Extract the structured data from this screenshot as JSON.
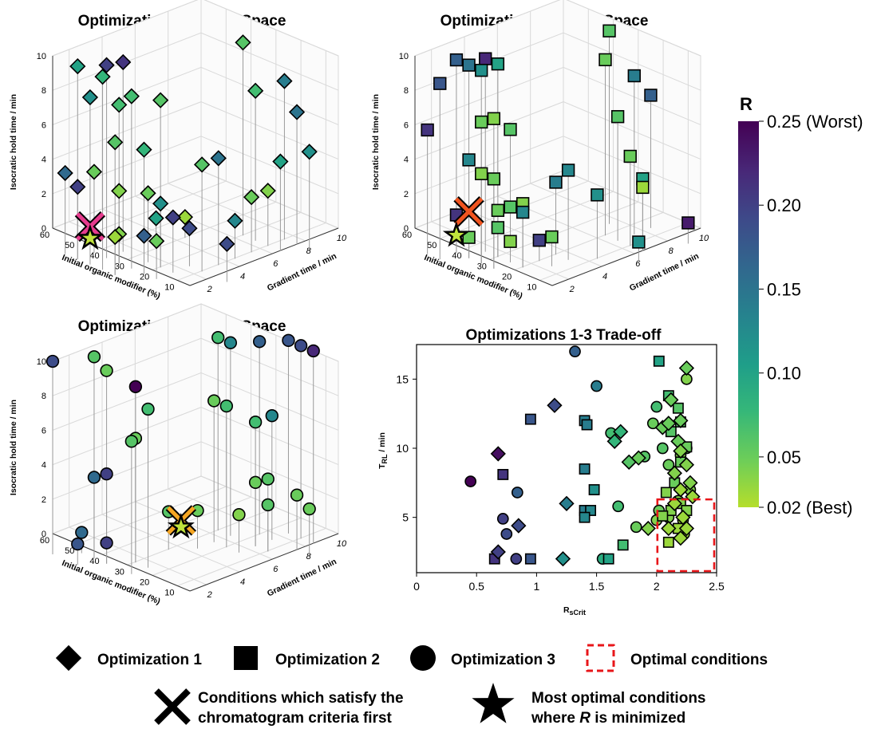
{
  "chart_data": [
    {
      "type": "scatter3d",
      "title": "Optimization 1 Design Space",
      "xlabel": "Gradient time / min",
      "ylabel": "Initial organic modifier (%)",
      "zlabel": "Isocratic hold time / min",
      "xticks": [
        "2",
        "4",
        "6",
        "8",
        "10"
      ],
      "yticks": [
        "10",
        "20",
        "30",
        "40",
        "50",
        "60"
      ],
      "zticks": [
        "0",
        "2",
        "4",
        "6",
        "8",
        "10"
      ],
      "xlim": [
        1,
        10
      ],
      "ylim": [
        5,
        60
      ],
      "zlim": [
        0,
        10
      ],
      "marker": "diamond",
      "points": [
        [
          1,
          50,
          10,
          0.1
        ],
        [
          1,
          45,
          8.5,
          0.12
        ],
        [
          1,
          40,
          10,
          0.08
        ],
        [
          2,
          40,
          8,
          0.07
        ],
        [
          1,
          35,
          6.5,
          0.06
        ],
        [
          2,
          35,
          8.8,
          0.07
        ],
        [
          2,
          30,
          6,
          0.08
        ],
        [
          3,
          30,
          8.5,
          0.06
        ],
        [
          2,
          45,
          10,
          0.2
        ],
        [
          3,
          45,
          9.8,
          0.21
        ],
        [
          1,
          55,
          3.5,
          0.16
        ],
        [
          1,
          50,
          3,
          0.2
        ],
        [
          2,
          50,
          3.5,
          0.05
        ],
        [
          2,
          40,
          3,
          0.04
        ],
        [
          3,
          35,
          2.8,
          0.05
        ],
        [
          3,
          30,
          2.5,
          0.12
        ],
        [
          2,
          30,
          1,
          0.17
        ],
        [
          2,
          25,
          1,
          0.05
        ],
        [
          3,
          25,
          2,
          0.2
        ],
        [
          4,
          25,
          1,
          0.19
        ],
        [
          4,
          20,
          5,
          0.06
        ],
        [
          5,
          20,
          5,
          0.15
        ],
        [
          1,
          35,
          1,
          0.03
        ],
        [
          2,
          40,
          0.5,
          0.04
        ],
        [
          6,
          20,
          1,
          0.13
        ],
        [
          4,
          10,
          1,
          0.19
        ],
        [
          8,
          30,
          10,
          0.06
        ],
        [
          8,
          25,
          7.5,
          0.07
        ],
        [
          9,
          20,
          8,
          0.14
        ],
        [
          9,
          15,
          6.5,
          0.15
        ],
        [
          8,
          15,
          4,
          0.1
        ],
        [
          9,
          10,
          4.5,
          0.12
        ],
        [
          7,
          20,
          2,
          0.05
        ],
        [
          8,
          20,
          2,
          0.04
        ],
        [
          6,
          40,
          0,
          0.03
        ],
        [
          5,
          45,
          0,
          0.1
        ]
      ],
      "highlight_x": [
        1,
        45,
        1
      ],
      "highlight_star": [
        1,
        45,
        0.5
      ]
    },
    {
      "type": "scatter3d",
      "title": "Optimization 2 Design Space",
      "xlabel": "Gradient time / min",
      "ylabel": "Initial organic modifier (%)",
      "zlabel": "Isocratic hold time / min",
      "xticks": [
        "2",
        "4",
        "6",
        "8",
        "10"
      ],
      "yticks": [
        "10",
        "20",
        "30",
        "40",
        "50",
        "60"
      ],
      "zticks": [
        "0",
        "2",
        "4",
        "6",
        "8",
        "10"
      ],
      "xlim": [
        1,
        10
      ],
      "ylim": [
        5,
        60
      ],
      "zlim": [
        0,
        10
      ],
      "marker": "square",
      "points": [
        [
          1,
          55,
          6,
          0.21
        ],
        [
          1,
          50,
          9,
          0.18
        ],
        [
          2,
          50,
          10,
          0.17
        ],
        [
          2,
          45,
          10,
          0.15
        ],
        [
          2,
          40,
          10,
          0.12
        ],
        [
          3,
          40,
          10,
          0.1
        ],
        [
          2,
          40,
          7,
          0.05
        ],
        [
          2,
          35,
          7.5,
          0.04
        ],
        [
          3,
          35,
          6.5,
          0.06
        ],
        [
          2,
          45,
          4.5,
          0.13
        ],
        [
          2,
          40,
          4,
          0.04
        ],
        [
          2,
          35,
          4,
          0.05
        ],
        [
          3,
          30,
          2.5,
          0.04
        ],
        [
          3,
          30,
          2,
          0.13
        ],
        [
          3,
          35,
          2,
          0.06
        ],
        [
          3,
          40,
          1.5,
          0.05
        ],
        [
          5,
          30,
          3,
          0.14
        ],
        [
          5,
          25,
          4,
          0.13
        ],
        [
          2,
          50,
          1,
          0.21
        ],
        [
          2,
          45,
          0,
          0.05
        ],
        [
          3,
          40,
          0.5,
          0.06
        ],
        [
          3,
          35,
          0,
          0.04
        ],
        [
          4,
          30,
          0,
          0.2
        ],
        [
          4,
          25,
          0.5,
          0.05
        ],
        [
          9,
          35,
          10,
          0.06
        ],
        [
          8,
          30,
          9,
          0.05
        ],
        [
          9,
          25,
          8,
          0.14
        ],
        [
          10,
          25,
          6.5,
          0.17
        ],
        [
          8,
          25,
          6,
          0.06
        ],
        [
          8,
          20,
          4,
          0.05
        ],
        [
          8,
          15,
          3,
          0.1
        ],
        [
          8,
          15,
          2.5,
          0.03
        ],
        [
          6,
          20,
          2.5,
          0.12
        ],
        [
          7,
          10,
          0,
          0.12
        ],
        [
          10,
          10,
          0,
          0.23
        ],
        [
          3,
          45,
          10,
          0.22
        ]
      ],
      "highlight_x": [
        2,
        45,
        1.5
      ],
      "highlight_star": [
        2,
        50,
        0
      ]
    },
    {
      "type": "scatter3d",
      "title": "Optimization 3 Design Space",
      "xlabel": "Gradient time / min",
      "ylabel": "Initial organic modifier (%)",
      "zlabel": "Isocratic hold time / min",
      "xticks": [
        "2",
        "4",
        "6",
        "8",
        "10"
      ],
      "yticks": [
        "10",
        "20",
        "30",
        "40",
        "50",
        "60"
      ],
      "zticks": [
        "0",
        "2",
        "4",
        "6",
        "8",
        "10"
      ],
      "xlim": [
        1,
        10
      ],
      "ylim": [
        5,
        60
      ],
      "zlim": [
        0,
        10
      ],
      "marker": "circle",
      "points": [
        [
          1,
          60,
          10,
          0.19
        ],
        [
          2,
          50,
          10.5,
          0.06
        ],
        [
          2,
          45,
          10,
          0.05
        ],
        [
          3,
          40,
          9,
          0.25
        ],
        [
          3,
          35,
          8,
          0.07
        ],
        [
          2,
          35,
          6.5,
          0.06
        ],
        [
          3,
          40,
          6,
          0.05
        ],
        [
          2,
          45,
          4,
          0.2
        ],
        [
          2,
          50,
          3.5,
          0.16
        ],
        [
          2,
          55,
          0,
          0.16
        ],
        [
          1,
          50,
          0,
          0.18
        ],
        [
          2,
          45,
          0,
          0.2
        ],
        [
          5,
          40,
          1,
          0.06
        ],
        [
          6,
          35,
          1,
          0.05
        ],
        [
          8,
          40,
          10,
          0.07
        ],
        [
          8,
          35,
          10,
          0.13
        ],
        [
          9,
          30,
          10,
          0.17
        ],
        [
          10,
          25,
          10,
          0.18
        ],
        [
          10,
          20,
          10,
          0.19
        ],
        [
          10,
          15,
          10,
          0.22
        ],
        [
          7,
          35,
          7,
          0.05
        ],
        [
          7,
          30,
          7,
          0.07
        ],
        [
          8,
          25,
          6,
          0.07
        ],
        [
          9,
          25,
          6,
          0.13
        ],
        [
          8,
          20,
          3,
          0.06
        ],
        [
          8,
          20,
          1.5,
          0.06
        ],
        [
          9,
          15,
          2,
          0.05
        ],
        [
          9,
          10,
          1.5,
          0.05
        ],
        [
          8,
          25,
          2.5,
          0.05
        ],
        [
          7,
          25,
          1,
          0.04
        ]
      ],
      "highlight_x": [
        5,
        35,
        0.8
      ],
      "highlight_star": [
        5,
        35,
        0.6
      ]
    },
    {
      "type": "scatter",
      "title": "Optimizations 1-3 Trade-off",
      "xlabel": "R",
      "xlabel_sub": "sCrit",
      "ylabel": "T",
      "ylabel_sub": "RL",
      "ylabel_unit": " / min",
      "xlim": [
        0,
        2.5
      ],
      "ylim": [
        1,
        17.5
      ],
      "xticks": [
        "0",
        "0.5",
        "1",
        "1.5",
        "2",
        "2.5"
      ],
      "yticks": [
        "5",
        "10",
        "15"
      ],
      "optimal_region": {
        "x": [
          2.0,
          2.5
        ],
        "y": [
          1,
          6.3
        ]
      },
      "diamonds": [
        [
          0.68,
          9.6,
          0.24
        ],
        [
          0.68,
          2.5,
          0.2
        ],
        [
          0.85,
          4.4,
          0.19
        ],
        [
          1.15,
          13.1,
          0.19
        ],
        [
          1.25,
          6,
          0.14
        ],
        [
          1.22,
          2,
          0.12
        ],
        [
          1.65,
          10.5,
          0.08
        ],
        [
          1.7,
          11.2,
          0.08
        ],
        [
          1.77,
          9,
          0.06
        ],
        [
          1.85,
          9.3,
          0.05
        ],
        [
          1.93,
          4.2,
          0.04
        ],
        [
          2.05,
          11.5,
          0.05
        ],
        [
          2.1,
          11.8,
          0.05
        ],
        [
          2.12,
          13.5,
          0.05
        ],
        [
          2.18,
          10.5,
          0.05
        ],
        [
          2.2,
          12,
          0.05
        ],
        [
          2.25,
          15.8,
          0.05
        ],
        [
          2.2,
          9.8,
          0.04
        ],
        [
          2.15,
          8.2,
          0.04
        ],
        [
          2.25,
          8.8,
          0.04
        ],
        [
          2.28,
          7.5,
          0.04
        ],
        [
          2.2,
          7,
          0.03
        ],
        [
          2.15,
          6,
          0.03
        ],
        [
          2.22,
          5,
          0.03
        ],
        [
          2.25,
          4.2,
          0.03
        ],
        [
          2.1,
          4.2,
          0.03
        ],
        [
          2.2,
          3.5,
          0.03
        ],
        [
          2.3,
          6.5,
          0.03
        ]
      ],
      "squares": [
        [
          0.72,
          8.1,
          0.21
        ],
        [
          0.65,
          2,
          0.21
        ],
        [
          0.95,
          12.1,
          0.18
        ],
        [
          0.95,
          2,
          0.18
        ],
        [
          1.4,
          12,
          0.14
        ],
        [
          1.42,
          11.7,
          0.14
        ],
        [
          1.4,
          8.5,
          0.14
        ],
        [
          1.4,
          5.5,
          0.14
        ],
        [
          1.45,
          5.5,
          0.13
        ],
        [
          1.4,
          5,
          0.13
        ],
        [
          1.48,
          7,
          0.12
        ],
        [
          1.6,
          2,
          0.1
        ],
        [
          1.72,
          3,
          0.07
        ],
        [
          2.02,
          16.3,
          0.1
        ],
        [
          2.1,
          13.8,
          0.07
        ],
        [
          2.18,
          12.9,
          0.06
        ],
        [
          2.2,
          11.9,
          0.06
        ],
        [
          2.12,
          11.2,
          0.06
        ],
        [
          2.25,
          10.1,
          0.05
        ],
        [
          2.2,
          9,
          0.05
        ],
        [
          2.15,
          7.5,
          0.05
        ],
        [
          2.08,
          6.8,
          0.04
        ],
        [
          2.2,
          6,
          0.04
        ],
        [
          2.12,
          5.5,
          0.04
        ],
        [
          2.18,
          4.2,
          0.03
        ],
        [
          2.25,
          5.5,
          0.04
        ],
        [
          2.1,
          3.2,
          0.03
        ],
        [
          2.05,
          5.1,
          0.04
        ]
      ],
      "circles": [
        [
          0.45,
          7.6,
          0.25
        ],
        [
          0.72,
          4.9,
          0.2
        ],
        [
          0.75,
          3.8,
          0.19
        ],
        [
          0.84,
          6.8,
          0.17
        ],
        [
          0.83,
          2,
          0.2
        ],
        [
          1.32,
          17,
          0.17
        ],
        [
          1.5,
          14.5,
          0.14
        ],
        [
          1.55,
          2,
          0.09
        ],
        [
          1.62,
          11.1,
          0.07
        ],
        [
          1.68,
          5.8,
          0.07
        ],
        [
          1.83,
          4.3,
          0.05
        ],
        [
          1.9,
          9.4,
          0.06
        ],
        [
          2,
          13,
          0.07
        ],
        [
          2.05,
          10,
          0.06
        ],
        [
          2.1,
          8.8,
          0.05
        ],
        [
          2.02,
          5.5,
          0.05
        ],
        [
          2.1,
          5,
          0.04
        ],
        [
          2.2,
          9.5,
          0.04
        ],
        [
          2.25,
          10,
          0.05
        ],
        [
          2.28,
          7,
          0.04
        ],
        [
          2.18,
          6.2,
          0.04
        ],
        [
          2.22,
          4.8,
          0.03
        ],
        [
          2.23,
          3.8,
          0.03
        ],
        [
          2.25,
          15,
          0.04
        ],
        [
          1.97,
          11.8,
          0.05
        ],
        [
          2.0,
          4.8,
          0.04
        ]
      ]
    },
    {
      "type": "colorbar",
      "label": "R",
      "min": 0.02,
      "max": 0.25,
      "ticks": [
        {
          "value": 0.25,
          "label": "0.25 (Worst)"
        },
        {
          "value": 0.2,
          "label": "0.20"
        },
        {
          "value": 0.15,
          "label": "0.15"
        },
        {
          "value": 0.1,
          "label": "0.10"
        },
        {
          "value": 0.05,
          "label": "0.05"
        },
        {
          "value": 0.02,
          "label": "0.02 (Best)"
        }
      ],
      "colormap": "viridis"
    }
  ],
  "legend": {
    "diamond_label": "Optimization 1",
    "square_label": "Optimization 2",
    "circle_label": "Optimization 3",
    "box_label": "Optimal conditions",
    "cross_line1": "Conditions which satisfy the",
    "cross_line2": "chromatogram criteria first",
    "star_line1": "Most optimal conditions",
    "star_line2_pre": "where ",
    "star_line2_em": "R",
    "star_line2_post": " is minimized"
  },
  "colors": {
    "optimal_box": "#e8161a",
    "cross_1": "#e63c8e",
    "cross_2": "#f0541f",
    "cross_3": "#f5a623",
    "star_fill": "#c0e33c"
  }
}
